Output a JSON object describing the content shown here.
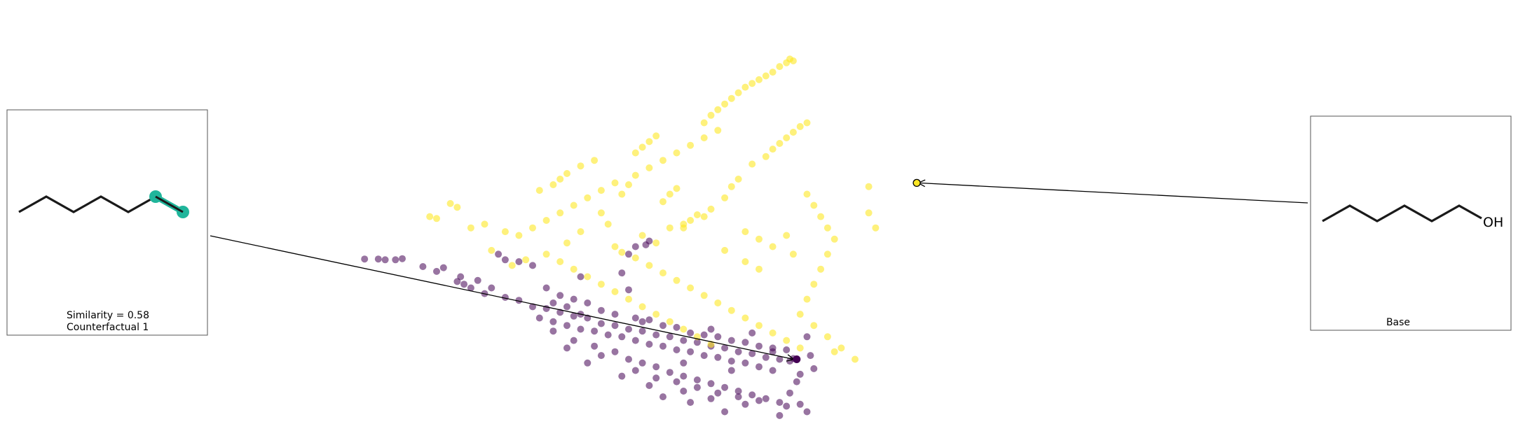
{
  "chart_data": {
    "type": "scatter",
    "title": "",
    "xlabel": "",
    "ylabel": "",
    "axes_visible": false,
    "grid": false,
    "colors": {
      "class_0": "#440154",
      "class_1": "#fde725",
      "highlight": "#20b59b",
      "bond": "#1a1a1a"
    },
    "series": [
      {
        "class": 0,
        "points": [
          [
            -3.75,
            -0.53
          ],
          [
            -3.55,
            -0.53
          ],
          [
            -3.45,
            -0.55
          ],
          [
            -3.3,
            -0.55
          ],
          [
            -3.2,
            -0.52
          ],
          [
            -2.9,
            -0.73
          ],
          [
            -2.7,
            -0.86
          ],
          [
            -2.6,
            -0.76
          ],
          [
            -2.4,
            -1.13
          ],
          [
            -2.35,
            -1.0
          ],
          [
            -2.3,
            -1.2
          ],
          [
            -2.2,
            -1.3
          ],
          [
            -2.1,
            -1.1
          ],
          [
            -2.0,
            -1.45
          ],
          [
            -1.9,
            -1.3
          ],
          [
            -1.7,
            -1.55
          ],
          [
            -1.5,
            -1.63
          ],
          [
            -1.3,
            -1.8
          ],
          [
            -1.1,
            -1.85
          ],
          [
            -0.9,
            -1.95
          ],
          [
            -0.7,
            -2.05
          ],
          [
            -0.5,
            -2.1
          ],
          [
            -0.3,
            -2.25
          ],
          [
            -0.1,
            -2.3
          ],
          [
            0.1,
            -2.4
          ],
          [
            0.3,
            -2.45
          ],
          [
            0.5,
            -2.55
          ],
          [
            0.7,
            -2.6
          ],
          [
            0.9,
            -2.7
          ],
          [
            1.1,
            -2.75
          ],
          [
            1.3,
            -2.85
          ],
          [
            1.5,
            -2.9
          ],
          [
            1.7,
            -3.0
          ],
          [
            1.9,
            -3.05
          ],
          [
            2.1,
            -3.15
          ],
          [
            2.3,
            -3.2
          ],
          [
            2.45,
            -3.25
          ],
          [
            2.5,
            -3.18
          ],
          [
            -1.8,
            -0.4
          ],
          [
            -1.7,
            -0.55
          ],
          [
            -1.5,
            -0.6
          ],
          [
            -1.3,
            -0.7
          ],
          [
            -1.1,
            -1.3
          ],
          [
            -0.9,
            -1.5
          ],
          [
            -0.7,
            -1.6
          ],
          [
            -0.5,
            -1.7
          ],
          [
            -0.3,
            -1.9
          ],
          [
            -0.1,
            -2.0
          ],
          [
            0.2,
            -2.1
          ],
          [
            0.4,
            -2.15
          ],
          [
            0.6,
            -2.3
          ],
          [
            0.8,
            -2.35
          ],
          [
            1.0,
            -2.5
          ],
          [
            1.2,
            -2.55
          ],
          [
            1.4,
            -2.6
          ],
          [
            1.6,
            -2.7
          ],
          [
            1.8,
            -2.75
          ],
          [
            2.0,
            -2.85
          ],
          [
            2.2,
            -2.9
          ],
          [
            2.4,
            -2.95
          ],
          [
            -1.2,
            -2.1
          ],
          [
            -1.0,
            -2.2
          ],
          [
            -0.8,
            -2.3
          ],
          [
            -0.6,
            -2.4
          ],
          [
            -0.4,
            -2.45
          ],
          [
            -0.2,
            -2.55
          ],
          [
            0.0,
            -2.6
          ],
          [
            0.2,
            -2.7
          ],
          [
            0.4,
            -2.8
          ],
          [
            0.6,
            -2.85
          ],
          [
            0.8,
            -2.95
          ],
          [
            1.0,
            -3.0
          ],
          [
            1.2,
            -3.1
          ],
          [
            1.4,
            -3.15
          ],
          [
            1.6,
            -3.25
          ],
          [
            1.8,
            -3.3
          ],
          [
            2.0,
            -3.4
          ],
          [
            2.2,
            -3.5
          ],
          [
            -0.7,
            -2.7
          ],
          [
            -0.4,
            -2.85
          ],
          [
            -0.1,
            -3.0
          ],
          [
            0.1,
            -3.2
          ],
          [
            0.3,
            -3.3
          ],
          [
            0.5,
            -3.4
          ],
          [
            0.7,
            -3.55
          ],
          [
            0.9,
            -3.65
          ],
          [
            1.1,
            -3.75
          ],
          [
            1.3,
            -3.85
          ],
          [
            1.5,
            -3.95
          ],
          [
            1.7,
            -4.05
          ],
          [
            1.9,
            -4.15
          ],
          [
            2.1,
            -4.25
          ],
          [
            2.3,
            -4.35
          ],
          [
            -0.3,
            -3.1
          ],
          [
            -0.5,
            -3.3
          ],
          [
            0.2,
            -3.5
          ],
          [
            0.5,
            -3.7
          ],
          [
            0.8,
            -3.8
          ],
          [
            1.1,
            -3.95
          ],
          [
            1.4,
            -4.1
          ],
          [
            1.7,
            -4.2
          ],
          [
            2.0,
            -4.3
          ],
          [
            2.4,
            -4.45
          ],
          [
            0.0,
            -3.65
          ],
          [
            0.4,
            -3.9
          ],
          [
            0.9,
            -4.05
          ],
          [
            1.3,
            -4.25
          ],
          [
            1.8,
            -4.4
          ],
          [
            -0.6,
            -1.0
          ],
          [
            0.1,
            -0.4
          ],
          [
            0.2,
            -0.2
          ],
          [
            0.4,
            -0.05
          ],
          [
            0.35,
            -0.15
          ],
          [
            0.0,
            -0.9
          ],
          [
            0.1,
            -1.35
          ],
          [
            -0.8,
            -2.9
          ],
          [
            2.7,
            -2.6
          ],
          [
            2.75,
            -3.1
          ],
          [
            2.8,
            -3.45
          ],
          [
            2.6,
            -3.6
          ],
          [
            2.55,
            -3.8
          ],
          [
            2.45,
            -4.1
          ],
          [
            2.6,
            -4.4
          ],
          [
            2.7,
            -4.6
          ],
          [
            2.3,
            -4.7
          ],
          [
            1.5,
            -4.6
          ],
          [
            1.0,
            -4.35
          ],
          [
            0.6,
            -4.2
          ],
          [
            -0.8,
            -1.8
          ],
          [
            -0.6,
            -2.0
          ],
          [
            -1.0,
            -1.7
          ],
          [
            0.3,
            -2.2
          ],
          [
            1.3,
            -2.4
          ],
          [
            1.9,
            -2.5
          ],
          [
            2.2,
            -3.0
          ],
          [
            0.9,
            -3.3
          ],
          [
            1.6,
            -3.5
          ],
          [
            -1.0,
            -2.45
          ]
        ]
      },
      {
        "class": 1,
        "points": [
          [
            -2.8,
            0.6
          ],
          [
            -2.7,
            0.55
          ],
          [
            -2.5,
            0.95
          ],
          [
            -2.4,
            0.85
          ],
          [
            -2.2,
            0.3
          ],
          [
            -2.0,
            0.4
          ],
          [
            -1.7,
            0.2
          ],
          [
            -1.9,
            -0.3
          ],
          [
            -1.6,
            -0.7
          ],
          [
            -1.4,
            -0.55
          ],
          [
            -1.2,
            1.3
          ],
          [
            -1.0,
            1.45
          ],
          [
            -0.9,
            1.6
          ],
          [
            -0.8,
            1.75
          ],
          [
            -0.6,
            1.95
          ],
          [
            -0.4,
            2.1
          ],
          [
            -0.3,
            0.7
          ],
          [
            -0.2,
            0.4
          ],
          [
            0.0,
            1.2
          ],
          [
            0.1,
            1.45
          ],
          [
            0.2,
            2.3
          ],
          [
            0.3,
            2.45
          ],
          [
            0.4,
            2.6
          ],
          [
            0.5,
            2.75
          ],
          [
            0.6,
            1.0
          ],
          [
            0.7,
            1.2
          ],
          [
            0.8,
            1.35
          ],
          [
            0.9,
            0.3
          ],
          [
            1.0,
            0.5
          ],
          [
            1.1,
            0.65
          ],
          [
            1.2,
            3.1
          ],
          [
            1.3,
            3.3
          ],
          [
            1.4,
            3.45
          ],
          [
            1.5,
            3.6
          ],
          [
            1.6,
            3.75
          ],
          [
            1.7,
            3.9
          ],
          [
            1.8,
            4.05
          ],
          [
            1.9,
            4.15
          ],
          [
            2.0,
            4.25
          ],
          [
            2.1,
            4.35
          ],
          [
            2.2,
            4.45
          ],
          [
            2.3,
            4.6
          ],
          [
            2.4,
            4.7
          ],
          [
            2.45,
            4.8
          ],
          [
            2.5,
            4.75
          ],
          [
            2.1,
            2.2
          ],
          [
            2.2,
            2.4
          ],
          [
            2.3,
            2.55
          ],
          [
            2.4,
            2.7
          ],
          [
            2.5,
            2.85
          ],
          [
            2.6,
            3.0
          ],
          [
            2.7,
            3.1
          ],
          [
            1.9,
            2.0
          ],
          [
            1.7,
            1.6
          ],
          [
            1.6,
            1.4
          ],
          [
            1.5,
            1.1
          ],
          [
            1.3,
            0.8
          ],
          [
            1.2,
            0.6
          ],
          [
            0.9,
            0.4
          ],
          [
            0.7,
            0.3
          ],
          [
            -0.1,
            -0.2
          ],
          [
            0.0,
            -0.35
          ],
          [
            0.2,
            -0.5
          ],
          [
            0.4,
            -0.7
          ],
          [
            0.6,
            -0.9
          ],
          [
            0.8,
            -1.1
          ],
          [
            1.0,
            -1.3
          ],
          [
            1.2,
            -1.5
          ],
          [
            1.4,
            -1.7
          ],
          [
            1.6,
            -1.9
          ],
          [
            1.8,
            -2.1
          ],
          [
            2.0,
            -2.3
          ],
          [
            2.2,
            -2.5
          ],
          [
            2.4,
            -2.7
          ],
          [
            2.6,
            -2.9
          ],
          [
            -1.1,
            -0.4
          ],
          [
            -0.9,
            -0.6
          ],
          [
            -0.7,
            -0.8
          ],
          [
            -0.5,
            -1.0
          ],
          [
            -0.3,
            -1.2
          ],
          [
            -0.1,
            -1.4
          ],
          [
            0.1,
            -1.6
          ],
          [
            0.3,
            -1.8
          ],
          [
            0.5,
            -2.0
          ],
          [
            0.7,
            -2.2
          ],
          [
            0.9,
            -2.4
          ],
          [
            1.1,
            -2.6
          ],
          [
            1.3,
            -2.8
          ],
          [
            -1.5,
            0.1
          ],
          [
            -1.3,
            0.3
          ],
          [
            -1.1,
            0.5
          ],
          [
            -0.9,
            0.7
          ],
          [
            -0.7,
            0.9
          ],
          [
            -0.5,
            1.1
          ],
          [
            -0.3,
            1.3
          ],
          [
            -0.1,
            1.5
          ],
          [
            0.2,
            1.7
          ],
          [
            0.4,
            1.9
          ],
          [
            0.6,
            2.1
          ],
          [
            0.8,
            2.3
          ],
          [
            1.0,
            2.5
          ],
          [
            1.2,
            2.7
          ],
          [
            1.4,
            2.9
          ],
          [
            2.7,
            1.2
          ],
          [
            2.8,
            0.9
          ],
          [
            2.9,
            0.6
          ],
          [
            3.0,
            0.3
          ],
          [
            3.1,
            0.0
          ],
          [
            3.0,
            -0.4
          ],
          [
            2.9,
            -0.8
          ],
          [
            2.8,
            -1.2
          ],
          [
            2.7,
            -1.6
          ],
          [
            2.6,
            -2.0
          ],
          [
            2.8,
            -2.3
          ],
          [
            3.0,
            -2.6
          ],
          [
            3.2,
            -2.9
          ],
          [
            3.4,
            -3.2
          ],
          [
            3.1,
            -3.0
          ],
          [
            3.6,
            1.4
          ],
          [
            3.6,
            0.7
          ],
          [
            3.7,
            0.3
          ],
          [
            -0.8,
            -0.1
          ],
          [
            -0.6,
            0.2
          ],
          [
            0.3,
            0.1
          ],
          [
            0.5,
            -0.1
          ],
          [
            1.5,
            -0.3
          ],
          [
            1.8,
            -0.6
          ],
          [
            2.0,
            -0.8
          ],
          [
            1.8,
            0.2
          ],
          [
            2.0,
            0.0
          ],
          [
            2.2,
            -0.2
          ],
          [
            2.4,
            0.1
          ],
          [
            2.5,
            -0.4
          ]
        ]
      }
    ],
    "base": {
      "x": 4.3,
      "y": 1.5,
      "label": "Base"
    },
    "counterfactual": {
      "x": 2.55,
      "y": -3.2,
      "similarity_label": "Similarity = 0.58",
      "label": "Counterfactual 1"
    },
    "xlim": [
      -6.0,
      10.0
    ],
    "ylim": [
      -5.0,
      6.0
    ],
    "base_molecule": {
      "substituent": "OH"
    }
  }
}
